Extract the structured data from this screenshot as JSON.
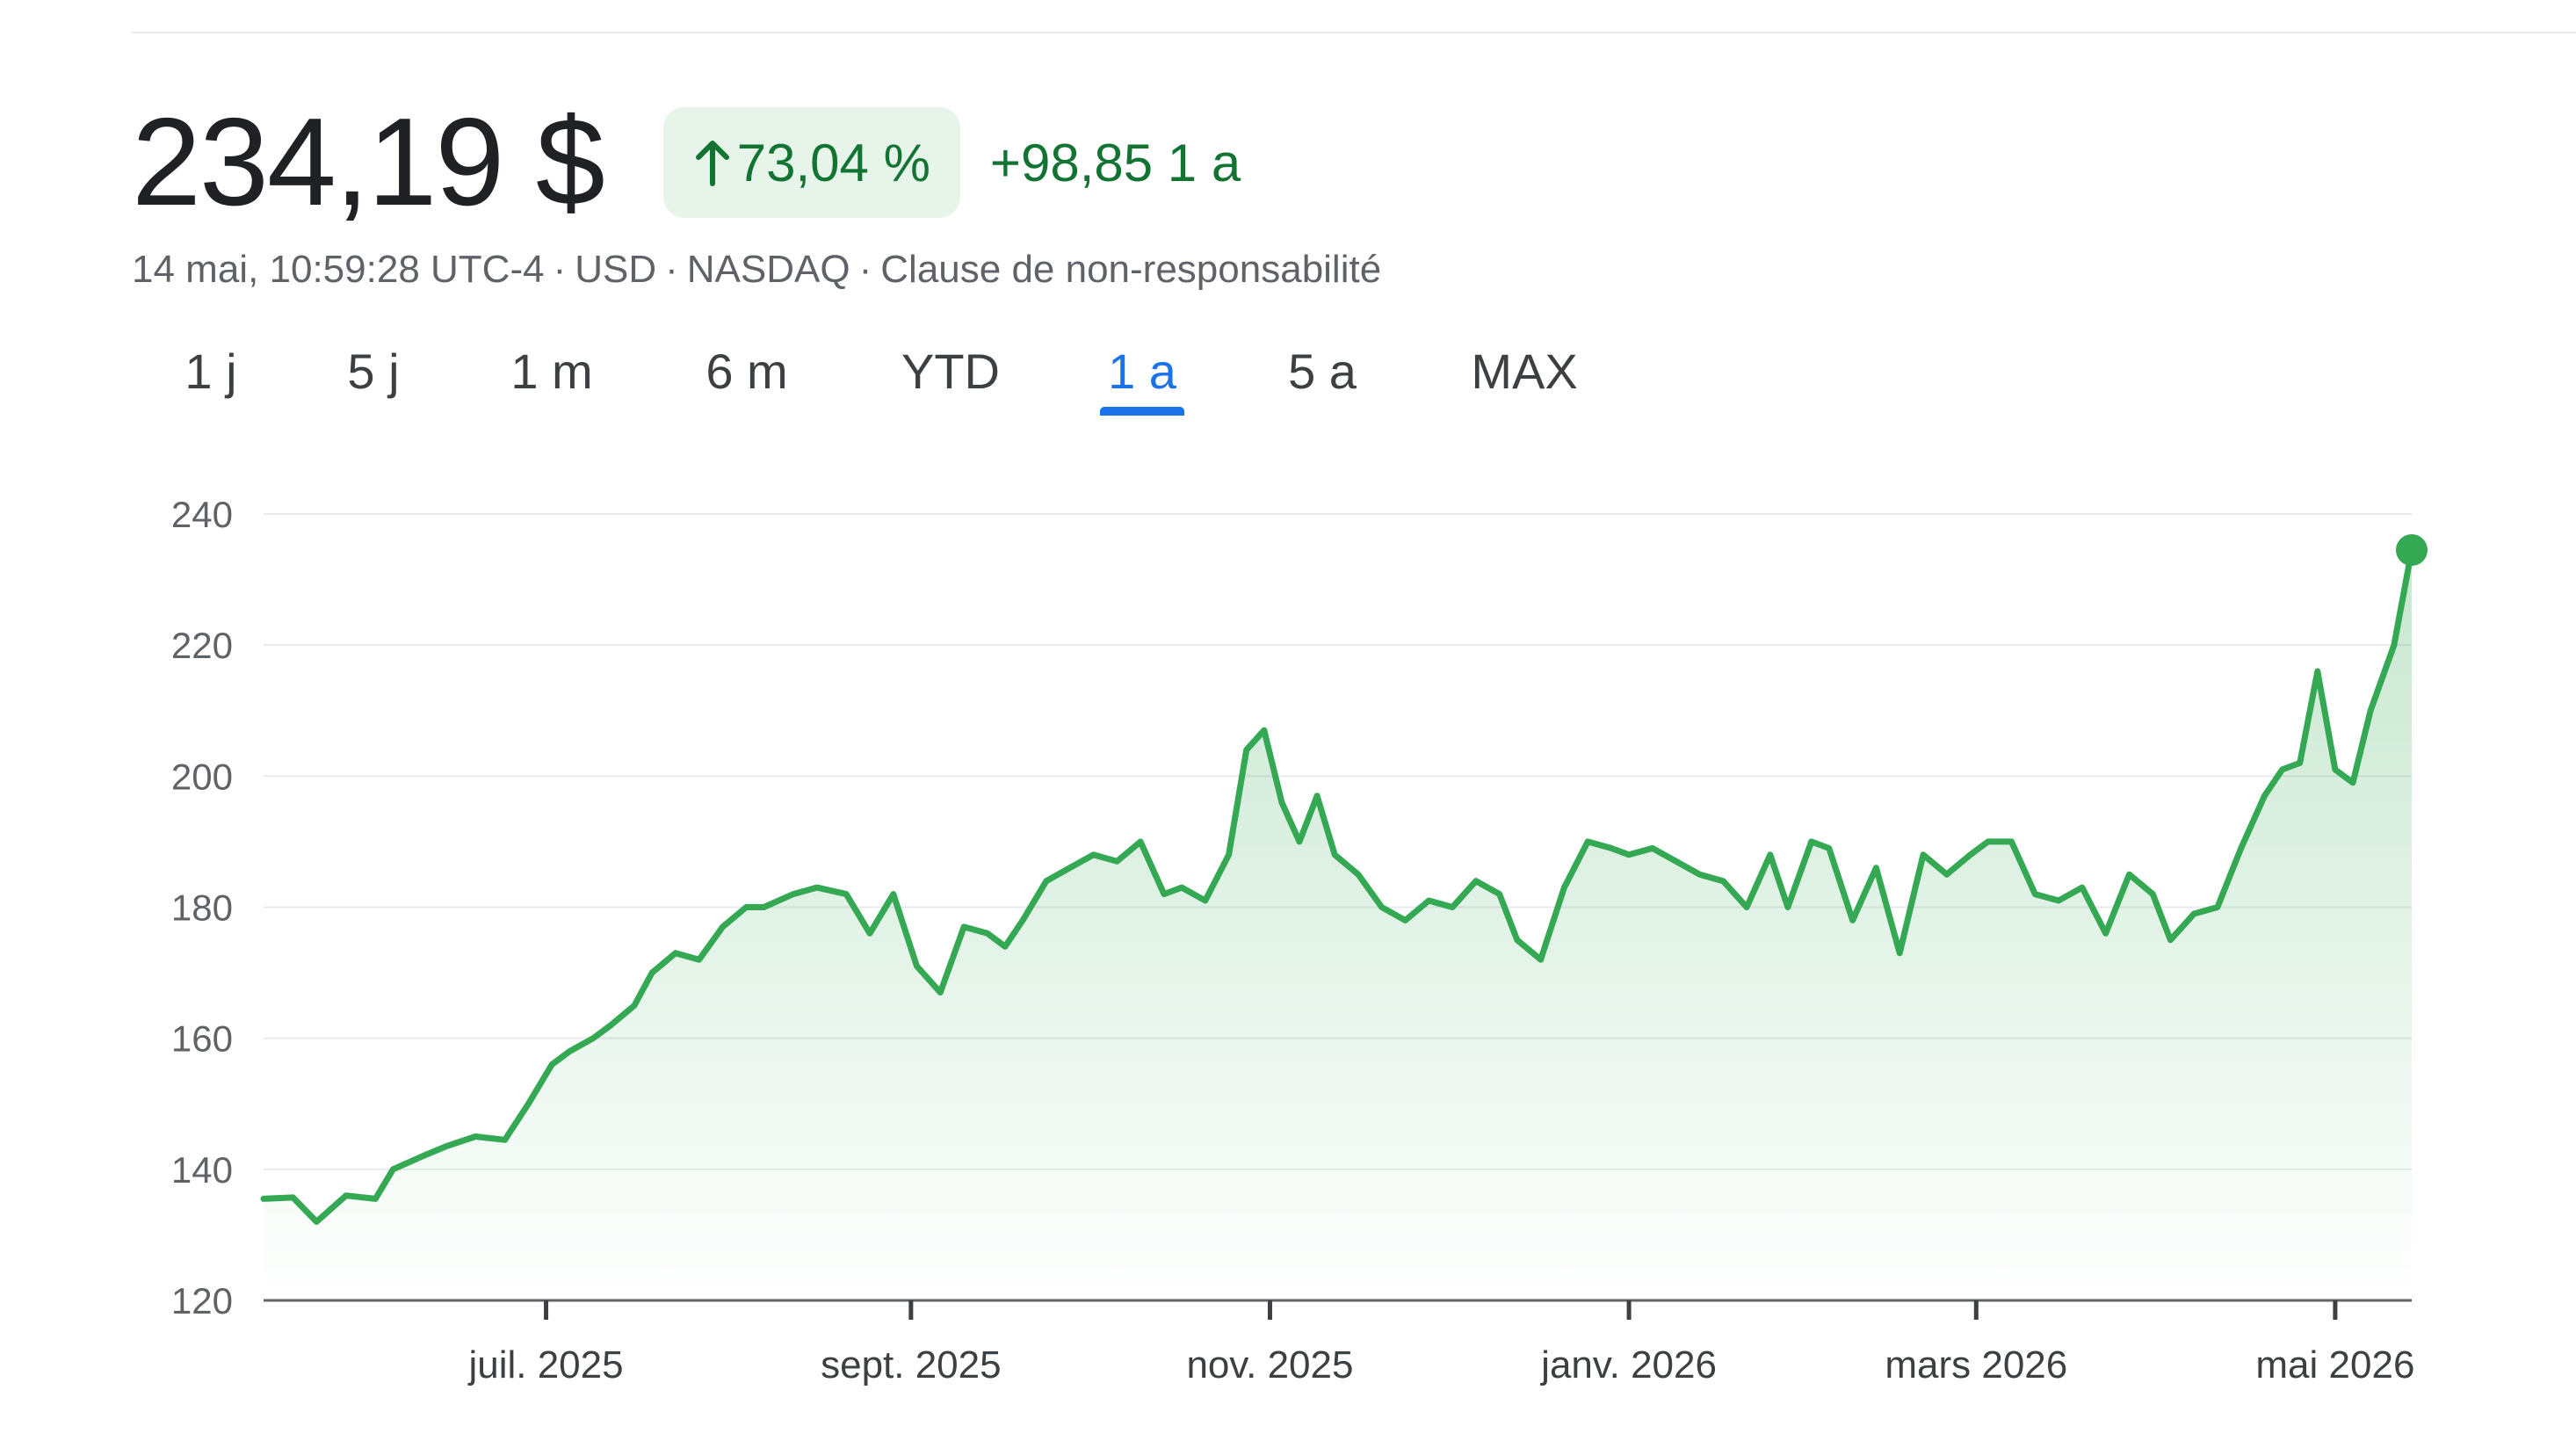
{
  "quote": {
    "price": "234,19 $",
    "change_pct": "73,04 %",
    "change_abs": "+98,85 1 a",
    "timestamp": "14 mai, 10:59:28 UTC-4",
    "currency": "USD",
    "exchange": "NASDAQ",
    "disclaimer": "Clause de non-responsabilité",
    "positive_color": "#137333",
    "badge_bg": "#e6f4ea"
  },
  "ranges": [
    {
      "label": "1 j",
      "active": false
    },
    {
      "label": "5 j",
      "active": false
    },
    {
      "label": "1 m",
      "active": false
    },
    {
      "label": "6 m",
      "active": false
    },
    {
      "label": "YTD",
      "active": false
    },
    {
      "label": "1 a",
      "active": true
    },
    {
      "label": "5 a",
      "active": false
    },
    {
      "label": "MAX",
      "active": false
    }
  ],
  "chart_data": {
    "type": "area",
    "line_color": "#34a853",
    "ylim": [
      120,
      240
    ],
    "yticks": [
      120,
      140,
      160,
      180,
      200,
      220,
      240
    ],
    "xlim": [
      "2025-05-14",
      "2026-05-14"
    ],
    "xticks": [
      {
        "date": "2025-07-01",
        "label": "juil. 2025"
      },
      {
        "date": "2025-09-01",
        "label": "sept. 2025"
      },
      {
        "date": "2025-11-01",
        "label": "nov. 2025"
      },
      {
        "date": "2026-01-01",
        "label": "janv. 2026"
      },
      {
        "date": "2026-03-01",
        "label": "mars 2026"
      },
      {
        "date": "2026-05-01",
        "label": "mai 2026"
      }
    ],
    "grid": true,
    "series": [
      {
        "x": [
          "2025-05-14",
          "2025-05-19",
          "2025-05-23",
          "2025-05-28",
          "2025-06-02",
          "2025-06-05",
          "2025-06-10",
          "2025-06-14",
          "2025-06-19",
          "2025-06-24",
          "2025-06-28",
          "2025-07-02",
          "2025-07-05",
          "2025-07-09",
          "2025-07-12",
          "2025-07-16",
          "2025-07-19",
          "2025-07-23",
          "2025-07-27",
          "2025-07-31",
          "2025-08-04",
          "2025-08-07",
          "2025-08-12",
          "2025-08-16",
          "2025-08-21",
          "2025-08-25",
          "2025-08-29",
          "2025-09-02",
          "2025-09-06",
          "2025-09-10",
          "2025-09-14",
          "2025-09-17",
          "2025-09-20",
          "2025-09-24",
          "2025-09-28",
          "2025-10-02",
          "2025-10-06",
          "2025-10-10",
          "2025-10-14",
          "2025-10-17",
          "2025-10-21",
          "2025-10-25",
          "2025-10-28",
          "2025-10-31",
          "2025-11-03",
          "2025-11-06",
          "2025-11-09",
          "2025-11-12",
          "2025-11-16",
          "2025-11-20",
          "2025-11-24",
          "2025-11-28",
          "2025-12-02",
          "2025-12-06",
          "2025-12-10",
          "2025-12-13",
          "2025-12-17",
          "2025-12-21",
          "2025-12-25",
          "2025-12-29",
          "2026-01-01",
          "2026-01-05",
          "2026-01-09",
          "2026-01-13",
          "2026-01-17",
          "2026-01-21",
          "2026-01-25",
          "2026-01-28",
          "2026-02-01",
          "2026-02-04",
          "2026-02-08",
          "2026-02-12",
          "2026-02-16",
          "2026-02-20",
          "2026-02-24",
          "2026-02-28",
          "2026-03-03",
          "2026-03-07",
          "2026-03-11",
          "2026-03-15",
          "2026-03-19",
          "2026-03-23",
          "2026-03-27",
          "2026-03-31",
          "2026-04-03",
          "2026-04-07",
          "2026-04-11",
          "2026-04-15",
          "2026-04-19",
          "2026-04-22",
          "2026-04-25",
          "2026-04-28",
          "2026-05-01",
          "2026-05-04",
          "2026-05-07",
          "2026-05-11",
          "2026-05-14"
        ],
        "y": [
          135.5,
          135.7,
          132,
          136,
          135.5,
          140,
          142,
          143.5,
          145,
          144.5,
          150,
          156,
          158,
          160,
          162,
          165,
          170,
          173,
          172,
          177,
          180,
          180,
          182,
          183,
          182,
          176,
          182,
          171,
          167,
          177,
          176,
          174,
          178,
          184,
          186,
          188,
          187,
          190,
          182,
          183,
          181,
          188,
          204,
          207,
          196,
          190,
          197,
          188,
          185,
          180,
          178,
          181,
          180,
          184,
          182,
          175,
          172,
          183,
          190,
          189,
          188,
          189,
          187,
          185,
          184,
          180,
          188,
          180,
          190,
          189,
          178,
          186,
          173,
          188,
          185,
          188,
          190,
          190,
          182,
          181,
          183,
          176,
          185,
          182,
          175,
          179,
          180,
          189,
          197,
          201,
          202,
          216,
          201,
          199,
          210,
          220,
          234.5
        ]
      }
    ]
  }
}
